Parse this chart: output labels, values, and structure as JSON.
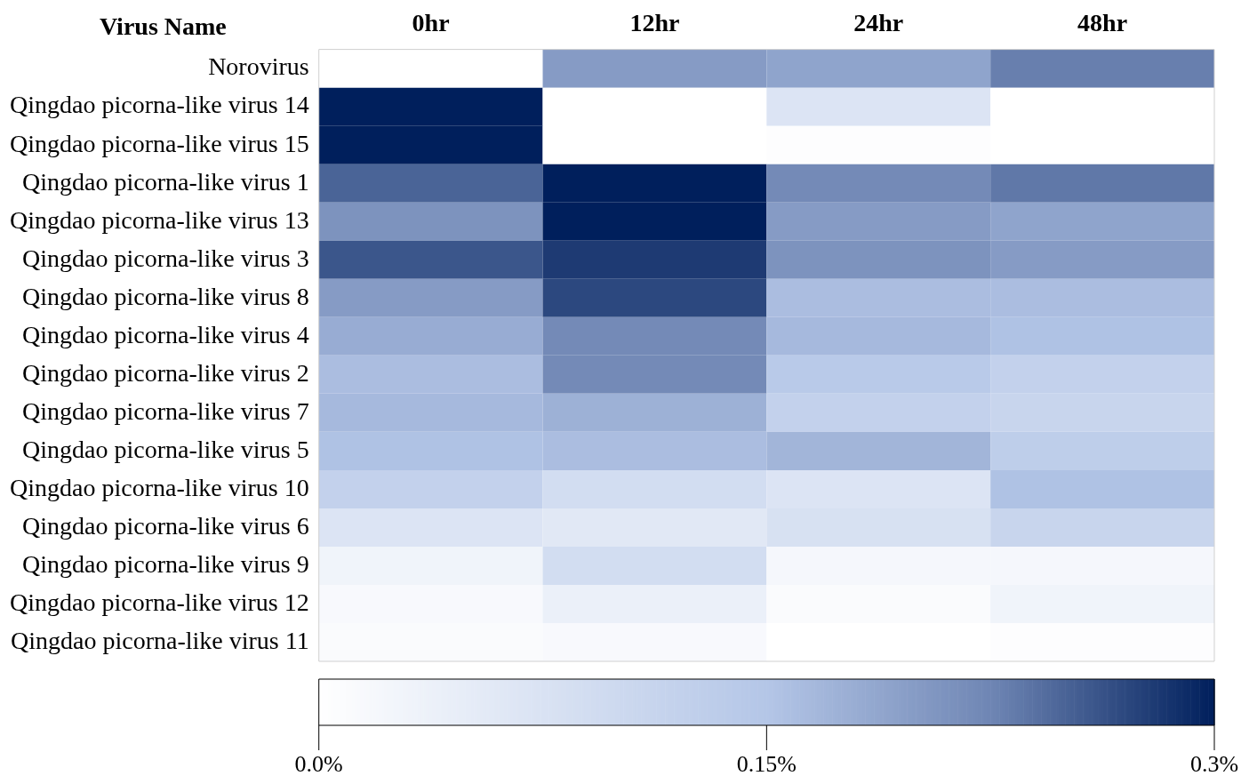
{
  "chart_data": {
    "type": "heatmap",
    "ylabel": "Virus Name",
    "categories": [
      "0hr",
      "12hr",
      "24hr",
      "48hr"
    ],
    "y_categories": [
      "Norovirus",
      "Qingdao picorna-like virus 14",
      "Qingdao picorna-like virus 15",
      "Qingdao picorna-like virus 1",
      "Qingdao picorna-like virus 13",
      "Qingdao picorna-like virus 3",
      "Qingdao picorna-like virus 8",
      "Qingdao picorna-like virus 4",
      "Qingdao picorna-like virus 2",
      "Qingdao picorna-like virus 7",
      "Qingdao picorna-like virus 5",
      "Qingdao picorna-like virus 10",
      "Qingdao picorna-like virus 6",
      "Qingdao picorna-like virus 9",
      "Qingdao picorna-like virus 12",
      "Qingdao picorna-like virus 11"
    ],
    "cells": [
      [
        0,
        0.2,
        0.19,
        0.23
      ],
      [
        0.3,
        0,
        0.07,
        0
      ],
      [
        0.3,
        0,
        0.005,
        0
      ],
      [
        0.25,
        0.3,
        0.22,
        0.235
      ],
      [
        0.21,
        0.3,
        0.2,
        0.19
      ],
      [
        0.26,
        0.28,
        0.21,
        0.2
      ],
      [
        0.2,
        0.27,
        0.16,
        0.16
      ],
      [
        0.18,
        0.22,
        0.165,
        0.155
      ],
      [
        0.16,
        0.22,
        0.14,
        0.12
      ],
      [
        0.165,
        0.175,
        0.12,
        0.11
      ],
      [
        0.155,
        0.16,
        0.17,
        0.13
      ],
      [
        0.12,
        0.09,
        0.07,
        0.155
      ],
      [
        0.07,
        0.06,
        0.08,
        0.11
      ],
      [
        0.03,
        0.09,
        0.02,
        0.02
      ],
      [
        0.015,
        0.04,
        0.01,
        0.03
      ],
      [
        0.01,
        0.015,
        0,
        0.005
      ]
    ],
    "clim": [
      0,
      0.3
    ],
    "cticks": [
      {
        "value": 0,
        "label": "0.0%"
      },
      {
        "value": 0.15,
        "label": "0.15%"
      },
      {
        "value": 0.3,
        "label": "0.3%"
      }
    ]
  }
}
